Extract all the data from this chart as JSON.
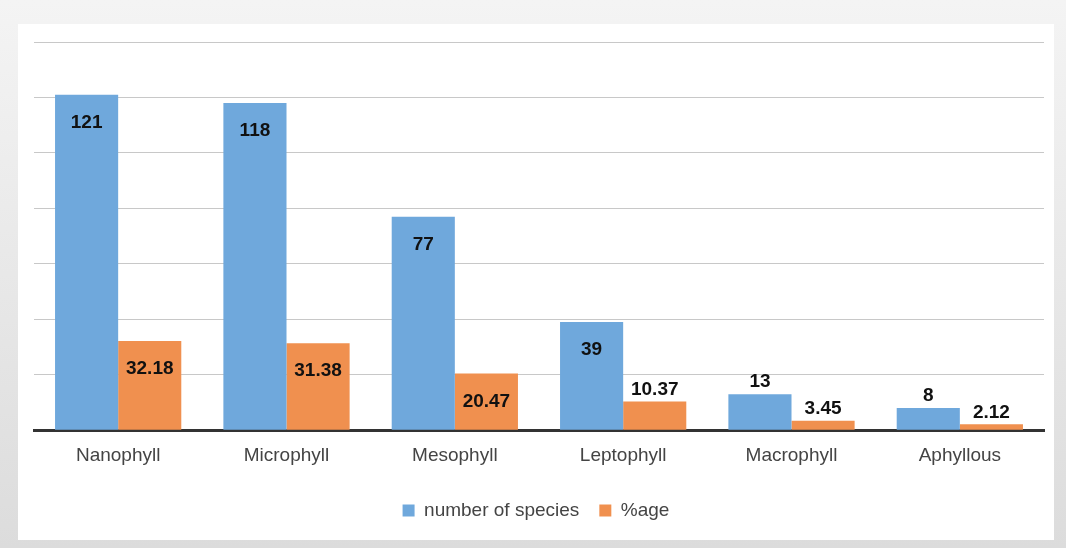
{
  "chart_data": {
    "type": "bar",
    "categories": [
      "Nanophyll",
      "Microphyll",
      "Mesophyll",
      "Leptophyll",
      "Macrophyll",
      "Aphyllous"
    ],
    "series": [
      {
        "name": "number of species",
        "color": "#6fa8dc",
        "values": [
          121,
          118,
          77,
          39,
          13,
          8
        ]
      },
      {
        "name": "%age",
        "color": "#f0904f",
        "values": [
          32.18,
          31.38,
          20.47,
          10.37,
          3.45,
          2.12
        ]
      }
    ],
    "ylim": [
      0,
      140
    ],
    "yticks": [
      {
        "value": 0,
        "label": null
      },
      {
        "value": 20,
        "label": null
      },
      {
        "value": 40,
        "label": null
      },
      {
        "value": 60,
        "label": null
      },
      {
        "value": 80,
        "label": null
      },
      {
        "value": 100,
        "label": null
      },
      {
        "value": 120,
        "label": null
      },
      {
        "value": 140,
        "label": null
      }
    ],
    "grid": "y",
    "legend": "bottom",
    "data_labels": true
  }
}
